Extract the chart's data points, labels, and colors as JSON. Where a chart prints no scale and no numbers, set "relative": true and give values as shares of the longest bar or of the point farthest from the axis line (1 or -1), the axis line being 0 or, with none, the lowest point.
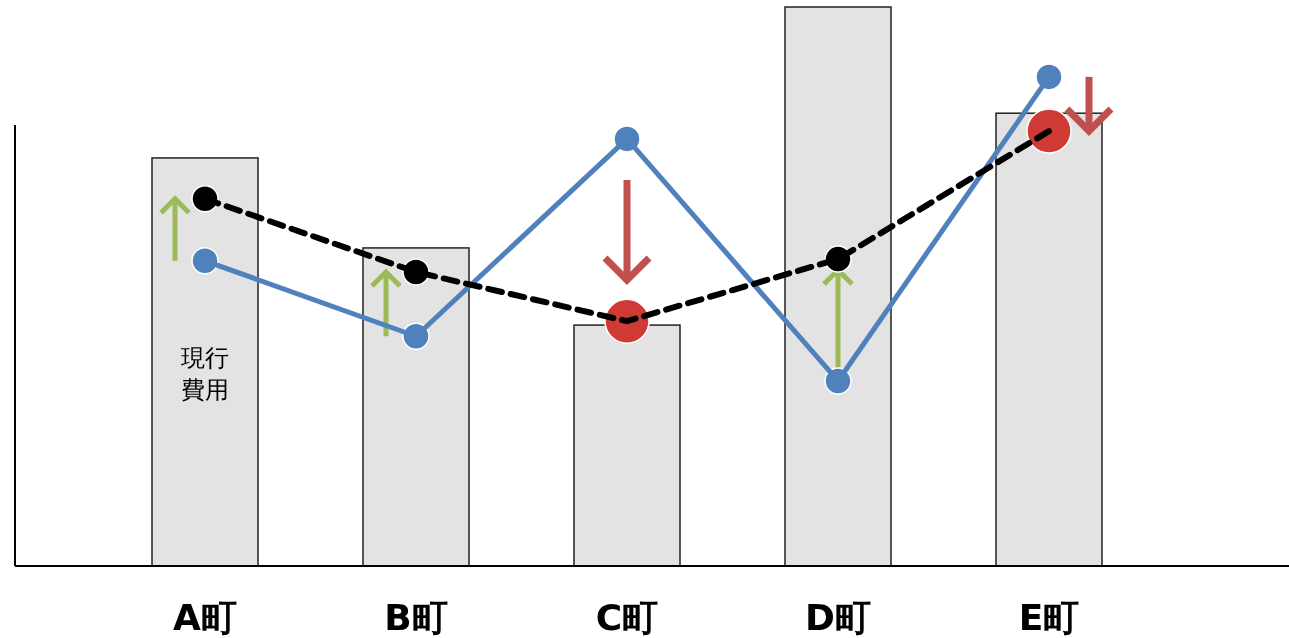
{
  "chart_data": {
    "type": "bar",
    "relative": true,
    "categories": [
      "A町",
      "B町",
      "C町",
      "D町",
      "E町"
    ],
    "series": [
      {
        "color": "#e3e3e3",
        "values": [
          0.73,
          0.569,
          0.431,
          1,
          0.81
        ]
      },
      {
        "type": "line",
        "color": "#4f81bd",
        "marker": "circle",
        "line_style": "solid",
        "values": [
          0.546,
          0.411,
          0.764,
          0.331,
          0.875
        ]
      },
      {
        "type": "line",
        "color": "#000000",
        "marker": "circle",
        "line_style": "dashed",
        "colors": [
          "#000000",
          "#000000",
          "#d03a35",
          "#000000",
          "#d03a35"
        ],
        "values": [
          0.657,
          0.526,
          0.438,
          0.549,
          0.778
        ]
      }
    ],
    "annotations": [
      "現行費用"
    ]
  }
}
